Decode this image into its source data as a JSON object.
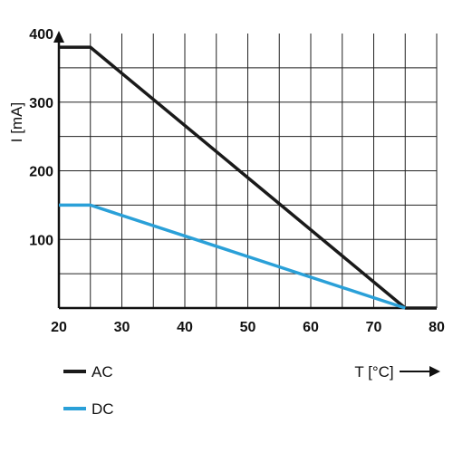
{
  "chart_data": {
    "type": "line",
    "title": "",
    "xlabel": "T [°C]",
    "ylabel": "I [mA]",
    "xlim": [
      20,
      80
    ],
    "ylim": [
      0,
      400
    ],
    "x_ticks": [
      20,
      30,
      40,
      50,
      60,
      70,
      80
    ],
    "y_ticks": [
      100,
      200,
      300,
      400
    ],
    "x_grid_step": 5,
    "y_grid_step": 50,
    "grid": true,
    "legend_position": "bottom-left",
    "series": [
      {
        "name": "AC",
        "color": "#1a1a1a",
        "x": [
          20,
          25,
          75,
          80
        ],
        "y": [
          380,
          380,
          0,
          0
        ]
      },
      {
        "name": "DC",
        "color": "#2aa0d8",
        "x": [
          20,
          25,
          75
        ],
        "y": [
          150,
          150,
          0
        ]
      }
    ]
  }
}
